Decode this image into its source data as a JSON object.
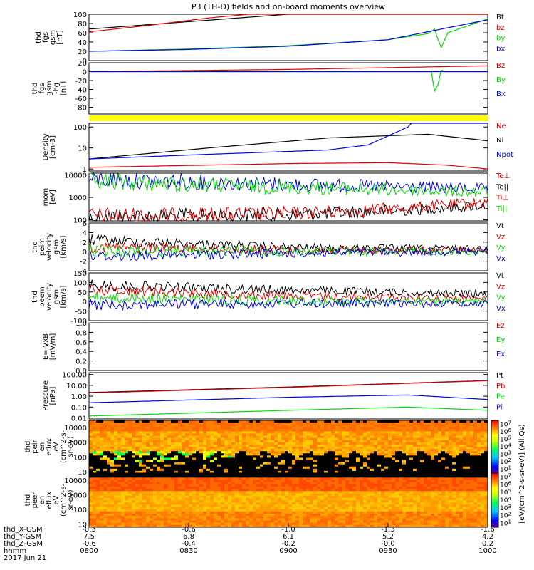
{
  "title": "P3 (TH-D) fields and on-board moments overview",
  "colors": {
    "black": "#000000",
    "red": "#e00000",
    "green": "#00dd00",
    "blue": "#0000e0",
    "yellow": "#ffff00"
  },
  "chart_data": [
    {
      "type": "line",
      "ylabel": [
        "thd",
        "fgs",
        "gsm",
        "[nT]"
      ],
      "ylim": [
        0,
        100
      ],
      "yticks": [
        "0",
        "20",
        "40",
        "60",
        "80",
        "100"
      ],
      "legend": [
        {
          "label": "Bt",
          "color": "black"
        },
        {
          "label": "bz",
          "color": "red"
        },
        {
          "label": "by",
          "color": "green"
        },
        {
          "label": "bx",
          "color": "blue"
        }
      ],
      "series": [
        {
          "name": "Bt",
          "color": "black",
          "x": [
            0,
            0.25,
            0.5,
            0.75,
            1.0
          ],
          "values": [
            68,
            84,
            100,
            100,
            100
          ]
        },
        {
          "name": "bz",
          "color": "red",
          "x": [
            0,
            0.15,
            0.3,
            0.4,
            1.0
          ],
          "values": [
            62,
            76,
            92,
            100,
            100
          ]
        },
        {
          "name": "by",
          "color": "green",
          "x": [
            0,
            0.25,
            0.5,
            0.75,
            0.85,
            0.87,
            0.88,
            0.9,
            1.0
          ],
          "values": [
            20,
            25,
            32,
            45,
            58,
            70,
            22,
            60,
            90
          ]
        },
        {
          "name": "bx",
          "color": "blue",
          "x": [
            0,
            0.25,
            0.5,
            0.75,
            1.0
          ],
          "values": [
            20,
            24,
            31,
            45,
            88
          ]
        }
      ]
    },
    {
      "type": "line",
      "ylabel": [
        "thd",
        "fgs",
        "gsm",
        "-bg",
        "[nT]"
      ],
      "ylim": [
        -95,
        20
      ],
      "yticks": [
        "-80",
        "-60",
        "-40",
        "-20",
        "0",
        "20"
      ],
      "legend": [
        {
          "label": "Bz",
          "color": "red"
        },
        {
          "label": "By",
          "color": "green"
        },
        {
          "label": "Bx",
          "color": "blue"
        }
      ],
      "series": [
        {
          "name": "Bz",
          "color": "red",
          "x": [
            0,
            0.5,
            1.0
          ],
          "values": [
            0,
            5,
            13
          ]
        },
        {
          "name": "By",
          "color": "green",
          "x": [
            0,
            0.86,
            0.87,
            0.88,
            0.89,
            1.0
          ],
          "values": [
            0,
            0,
            -65,
            5,
            0,
            0
          ]
        },
        {
          "name": "Bx",
          "color": "blue",
          "x": [
            0,
            1.0
          ],
          "values": [
            0,
            0
          ]
        }
      ]
    },
    {
      "type": "area",
      "color": "yellow"
    },
    {
      "type": "line",
      "ylabel": [
        "Density",
        "[cm-3]"
      ],
      "yscale": "log",
      "ylim": [
        0.8,
        150
      ],
      "yticks": [
        "1",
        "10",
        "100"
      ],
      "legend": [
        {
          "label": "Ne",
          "color": "red"
        },
        {
          "label": "Ni",
          "color": "black"
        },
        {
          "label": "Npot",
          "color": "blue"
        }
      ],
      "series": [
        {
          "name": "Ni",
          "color": "black",
          "x": [
            0,
            0.3,
            0.6,
            0.85,
            1.0
          ],
          "values": [
            3,
            10,
            30,
            45,
            22
          ]
        },
        {
          "name": "Npot",
          "color": "blue",
          "x": [
            0,
            0.3,
            0.6,
            0.7,
            0.8,
            0.78
          ],
          "values": [
            3,
            5,
            8,
            14,
            100,
            150
          ]
        },
        {
          "name": "Ne",
          "color": "red",
          "x": [
            0,
            0.5,
            0.75,
            0.9,
            1.0
          ],
          "values": [
            1.2,
            1.8,
            2.0,
            1.5,
            1.0
          ]
        }
      ]
    },
    {
      "type": "line",
      "ylabel": [
        "mom",
        "[eV]"
      ],
      "yscale": "log",
      "ylim": [
        90,
        12000
      ],
      "yticks": [
        "100",
        "1000",
        "10000"
      ],
      "legend": [
        {
          "label": "Te⊥",
          "color": "red"
        },
        {
          "label": "Te||",
          "color": "black"
        },
        {
          "label": "Ti⊥",
          "color": "red"
        },
        {
          "label": "Ti||",
          "color": "green"
        }
      ],
      "series": [
        {
          "name": "Te||",
          "color": "black",
          "x": [
            0,
            0.5,
            0.7,
            0.8,
            1.0
          ],
          "values": [
            130,
            170,
            230,
            280,
            450
          ]
        },
        {
          "name": "Te⊥",
          "color": "red",
          "x": [
            0,
            0.5,
            0.7,
            0.8,
            1.0
          ],
          "values": [
            140,
            190,
            270,
            340,
            620
          ]
        },
        {
          "name": "Ti⊥",
          "color": "blue",
          "x": [
            0,
            0.5,
            1.0
          ],
          "values": [
            6500,
            3800,
            2400
          ]
        },
        {
          "name": "Ti||",
          "color": "green",
          "x": [
            0,
            0.5,
            1.0
          ],
          "values": [
            5000,
            2800,
            1700
          ]
        }
      ]
    },
    {
      "type": "line",
      "ylabel": [
        "thd",
        "peim",
        "velocity",
        "gsm",
        "[km/s]"
      ],
      "ylim": [
        -4,
        6
      ],
      "yticks": [
        "-4",
        "-2",
        "0",
        "2",
        "4",
        "6"
      ],
      "legend": [
        {
          "label": "Vt",
          "color": "black"
        },
        {
          "label": "Vz",
          "color": "red"
        },
        {
          "label": "Vy",
          "color": "green"
        },
        {
          "label": "Vx",
          "color": "blue"
        }
      ],
      "series": [
        {
          "name": "Vt",
          "color": "black",
          "x": [
            0,
            0.5,
            1.0
          ],
          "values": [
            2.5,
            0.8,
            0.6
          ]
        },
        {
          "name": "Vz",
          "color": "red",
          "x": [
            0,
            0.5,
            1.0
          ],
          "values": [
            1.0,
            0.3,
            0.2
          ]
        },
        {
          "name": "Vy",
          "color": "green",
          "x": [
            0,
            0.5,
            1.0
          ],
          "values": [
            0.2,
            0.0,
            0.0
          ]
        },
        {
          "name": "Vx",
          "color": "blue",
          "x": [
            0,
            0.5,
            1.0
          ],
          "values": [
            -1.0,
            -0.3,
            0.0
          ]
        }
      ]
    },
    {
      "type": "line",
      "ylabel": [
        "thd",
        "peem",
        "velocity",
        "gsm",
        "[km/s]"
      ],
      "ylim": [
        -100,
        150
      ],
      "yticks": [
        "-100",
        "-50",
        "0",
        "50",
        "100",
        "150"
      ],
      "legend": [
        {
          "label": "Vt",
          "color": "black"
        },
        {
          "label": "Vz",
          "color": "red"
        },
        {
          "label": "Vy",
          "color": "green"
        },
        {
          "label": "Vx",
          "color": "blue"
        }
      ],
      "series": [
        {
          "name": "Vt",
          "color": "black",
          "x": [
            0,
            0.5,
            1.0
          ],
          "values": [
            85,
            60,
            40
          ]
        },
        {
          "name": "Vz",
          "color": "red",
          "x": [
            0,
            0.5,
            1.0
          ],
          "values": [
            65,
            30,
            15
          ]
        },
        {
          "name": "Vy",
          "color": "green",
          "x": [
            0,
            0.5,
            1.0
          ],
          "values": [
            20,
            5,
            0
          ]
        },
        {
          "name": "Vx",
          "color": "blue",
          "x": [
            0,
            0.5,
            1.0
          ],
          "values": [
            -15,
            -10,
            -10
          ]
        }
      ]
    },
    {
      "type": "line",
      "ylabel": [
        "E=-VxB",
        "[mV/m]"
      ],
      "ylim": [
        0,
        1
      ],
      "yticks": [
        "0.0",
        "0.2",
        "0.4",
        "0.6",
        "0.8",
        "1.0"
      ],
      "legend": [
        {
          "label": "Ez",
          "color": "red"
        },
        {
          "label": "Ey",
          "color": "green"
        },
        {
          "label": "Ex",
          "color": "blue"
        }
      ],
      "series": []
    },
    {
      "type": "line",
      "ylabel": [
        "Pressure",
        "[nPa]"
      ],
      "yscale": "log",
      "ylim": [
        0.008,
        150
      ],
      "yticks": [
        "0.01",
        "0.10",
        "1.00",
        "10.00",
        "100.00"
      ],
      "legend": [
        {
          "label": "Pt",
          "color": "black"
        },
        {
          "label": "Pb",
          "color": "red"
        },
        {
          "label": "Pe",
          "color": "green"
        },
        {
          "label": "Pi",
          "color": "blue"
        }
      ],
      "series": [
        {
          "name": "Pt",
          "color": "black",
          "x": [
            0,
            0.5,
            1.0
          ],
          "values": [
            2.2,
            7,
            28
          ]
        },
        {
          "name": "Pb",
          "color": "red",
          "x": [
            0,
            0.5,
            1.0
          ],
          "values": [
            2.0,
            6.5,
            27
          ]
        },
        {
          "name": "Pi",
          "color": "blue",
          "x": [
            0,
            0.5,
            0.8,
            1.0
          ],
          "values": [
            0.25,
            0.8,
            1.3,
            0.5
          ]
        },
        {
          "name": "Pe",
          "color": "green",
          "x": [
            0,
            0.5,
            0.8,
            1.0
          ],
          "values": [
            0.015,
            0.05,
            0.1,
            0.05
          ]
        }
      ]
    },
    {
      "type": "heatmap",
      "ylabel": [
        "thd",
        "peir",
        "en",
        "eflux",
        "eV",
        "(cm^2-s-",
        "sr-eV)"
      ],
      "yscale": "log",
      "ylim": [
        8,
        30000
      ],
      "yticks": [
        "10",
        "100",
        "1000",
        "10000"
      ]
    },
    {
      "type": "heatmap",
      "ylabel": [
        "thd",
        "peer",
        "en",
        "eflux",
        "eV",
        "(cm^2-s-",
        "sr-eV)"
      ],
      "yscale": "log",
      "ylim": [
        6,
        30000
      ],
      "yticks": [
        "10",
        "100",
        "1000",
        "10000"
      ]
    }
  ],
  "colorbar": {
    "label": "[eV/(cm^2-s-sr-eV)] (All Qs)",
    "upper_ticks": [
      "10^1",
      "10^2",
      "10^3",
      "10^4",
      "10^5",
      "10^6",
      "10^7"
    ],
    "lower_ticks": [
      "10^1",
      "10^2",
      "10^3",
      "10^4",
      "10^5",
      "10^6",
      "10^7"
    ]
  },
  "xaxis": {
    "rows": [
      {
        "label": "thd_X-GSM",
        "ticks": [
          "-0.3",
          "-0.6",
          "-1.0",
          "-1.3",
          "-1.6"
        ]
      },
      {
        "label": "thd_Y-GSM",
        "ticks": [
          "7.5",
          "6.8",
          "6.1",
          "5.2",
          "4.2"
        ]
      },
      {
        "label": "thd_Z-GSM",
        "ticks": [
          "-0.6",
          "-0.4",
          "-0.2",
          "-0.0",
          "0.2"
        ]
      },
      {
        "label": "hhmm",
        "ticks": [
          "0800",
          "0830",
          "0900",
          "0930",
          "1000"
        ]
      }
    ],
    "date": "2017 Jun 21"
  }
}
